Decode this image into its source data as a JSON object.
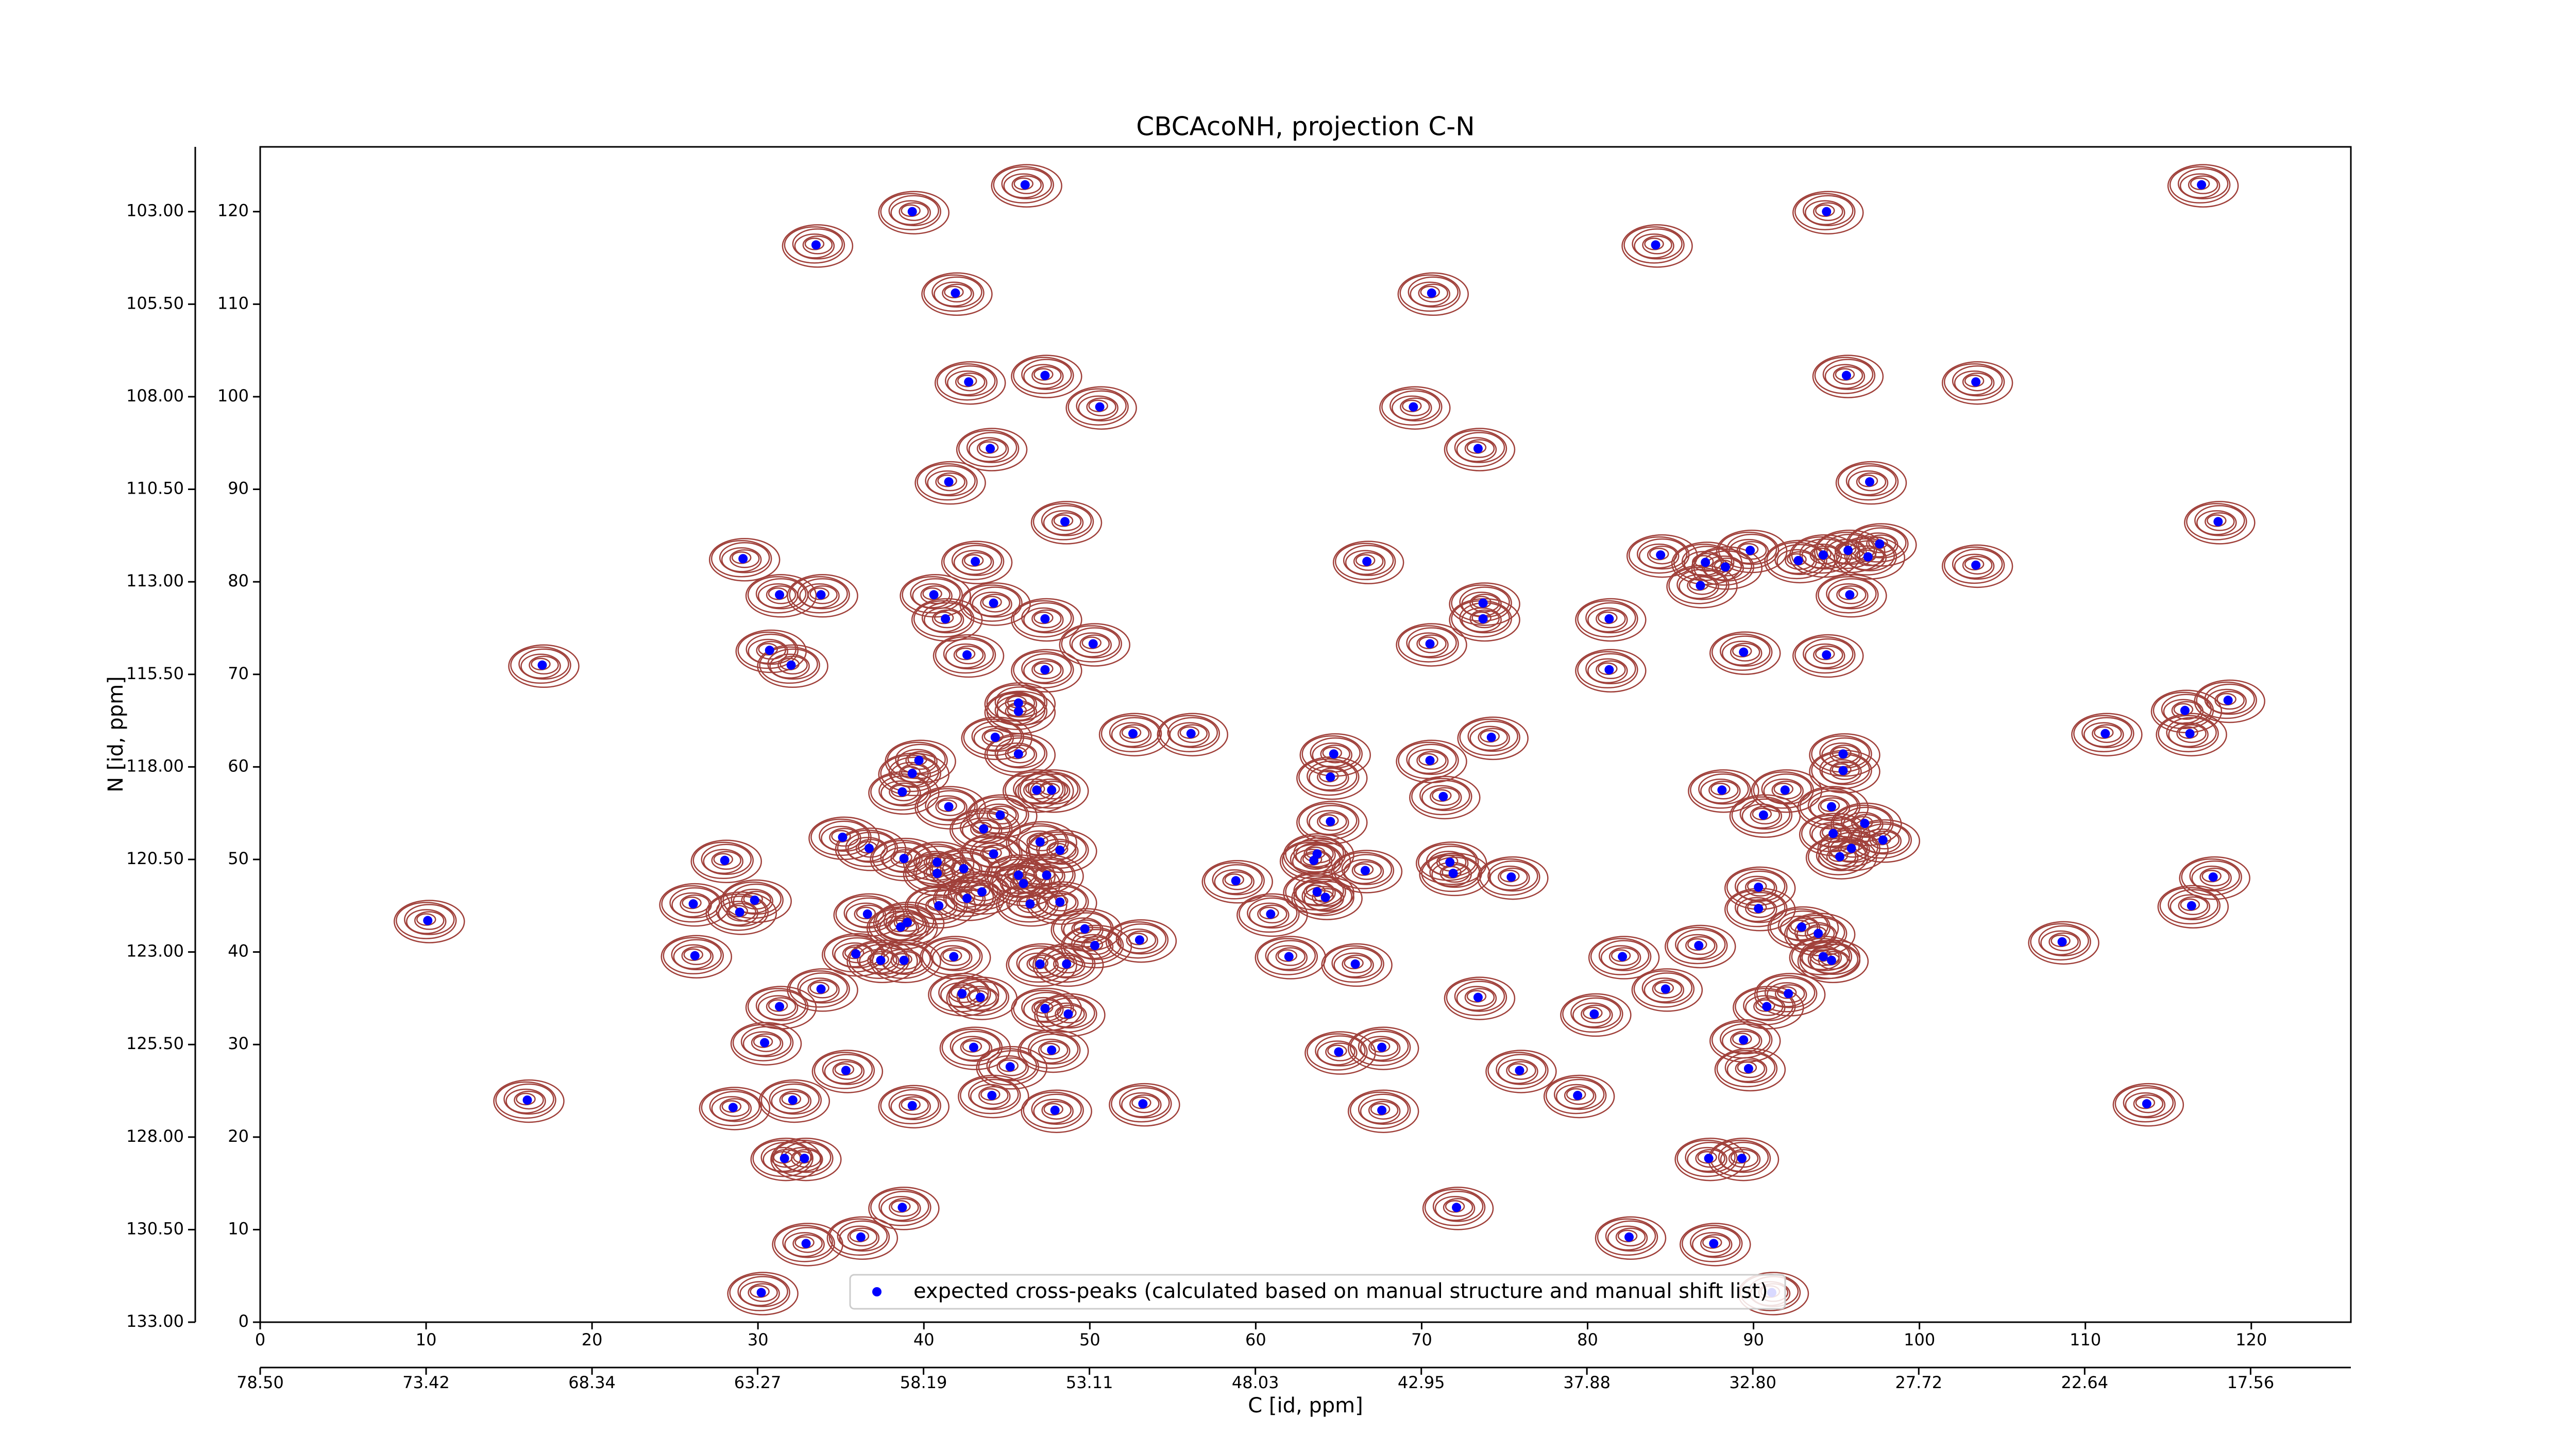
{
  "chart_data": {
    "type": "scatter",
    "title": "CBCAcoNH, projection C-N",
    "xlabel": "C [id, ppm]",
    "ylabel": "N [id, ppm]",
    "xlim": [
      0,
      126
    ],
    "ylim": [
      0,
      127
    ],
    "xticks": [
      0,
      10,
      20,
      30,
      40,
      50,
      60,
      70,
      80,
      90,
      100,
      110,
      120
    ],
    "yticks": [
      0,
      10,
      20,
      30,
      40,
      50,
      60,
      70,
      80,
      90,
      100,
      110,
      120
    ],
    "x2lim": [
      78.5,
      14.49
    ],
    "x2ticks": [
      {
        "value": 78.5,
        "label": "78.50"
      },
      73.42,
      68.34,
      63.27,
      58.19,
      53.11,
      48.03,
      42.95,
      37.88,
      {
        "value": 32.8,
        "label": "32.80"
      },
      27.72,
      22.64,
      17.56
    ],
    "y2lim": [
      133,
      101.25
    ],
    "y2ticks": [
      {
        "value": 103,
        "label": "103.00"
      },
      {
        "value": 105.5,
        "label": "105.50"
      },
      {
        "value": 108,
        "label": "108.00"
      },
      {
        "value": 110.5,
        "label": "110.50"
      },
      {
        "value": 113,
        "label": "113.00"
      },
      {
        "value": 115.5,
        "label": "115.50"
      },
      {
        "value": 118,
        "label": "118.00"
      },
      {
        "value": 120.5,
        "label": "120.50"
      },
      {
        "value": 123,
        "label": "123.00"
      },
      {
        "value": 125.5,
        "label": "125.50"
      },
      {
        "value": 128,
        "label": "128.00"
      },
      {
        "value": 130.5,
        "label": "130.50"
      },
      {
        "value": 133,
        "label": "133.00"
      }
    ],
    "contour_color": "#a0403a",
    "legend": "lower center",
    "series": [
      {
        "name": "expected cross-peaks (calculated based on manual structure and manual shift list)",
        "color": "#0000ff",
        "x": [
          46.1,
          39.3,
          117,
          94.4,
          33.5,
          84.1,
          41.9,
          70.6,
          42.7,
          47.3,
          50.6,
          69.5,
          95.6,
          103.4,
          44,
          73.4,
          41.5,
          97,
          48.5,
          118,
          29.1,
          31.3,
          33.8,
          40.6,
          41.3,
          44.2,
          43.1,
          66.7,
          73.7,
          73.7,
          47.3,
          81.3,
          84.4,
          86.8,
          87.1,
          88.3,
          89.8,
          92.7,
          94.2,
          95.7,
          95.8,
          96.9,
          97.6,
          103.4,
          50.2,
          70.5,
          30.7,
          32,
          42.6,
          47.3,
          17,
          89.4,
          94.4,
          81.3,
          45.7,
          45.7,
          52.6,
          56.1,
          74.2,
          111.2,
          116,
          118.6,
          116.3,
          44.3,
          45.7,
          39.7,
          39.3,
          64.7,
          64.5,
          70.5,
          95.4,
          95.4,
          38.7,
          41.5,
          46.8,
          47.7,
          71.3,
          88.1,
          91.9,
          90.6,
          94.7,
          44.6,
          43.6,
          35.1,
          36.7,
          38.8,
          40.8,
          40.8,
          42.4,
          47,
          48.2,
          44.2,
          45.7,
          47.4,
          46,
          43.5,
          46.4,
          48.2,
          28,
          64.5,
          63.7,
          63.5,
          66.6,
          71.7,
          71.9,
          75.4,
          94.8,
          95.9,
          95.2,
          97.8,
          96.7,
          117.7,
          116.4,
          58.8,
          60.9,
          63.7,
          64.2,
          90.3,
          90.3,
          26.1,
          28.9,
          29.8,
          36.6,
          38.6,
          39,
          40.9,
          42.6,
          10.1,
          49.7,
          50.3,
          53,
          92.9,
          93.9,
          94.2,
          94.7,
          108.6,
          26.2,
          35.9,
          37.4,
          38.8,
          41.8,
          47,
          48.6,
          62,
          66,
          82.1,
          86.7,
          33.8,
          31.3,
          42.3,
          43.4,
          84.7,
          73.4,
          92.1,
          90.8,
          47.3,
          48.7,
          80.4,
          30.4,
          43,
          47.7,
          65,
          67.6,
          89.4,
          89.7,
          45.2,
          35.3,
          75.9,
          44.1,
          16.1,
          28.5,
          32.1,
          39.3,
          47.9,
          53.2,
          67.6,
          79.4,
          113.7,
          31.6,
          32.8,
          87.3,
          89.3,
          38.7,
          72.1,
          32.9,
          36.2,
          82.5,
          87.6,
          30.2,
          91.1
        ],
        "values": [
          122.9,
          120,
          122.9,
          120,
          116.4,
          116.4,
          111.2,
          111.2,
          101.6,
          102.3,
          98.9,
          98.9,
          102.3,
          101.6,
          94.4,
          94.4,
          90.8,
          90.8,
          86.5,
          86.5,
          82.5,
          78.6,
          78.6,
          78.6,
          76,
          77.7,
          82.2,
          82.2,
          77.7,
          76,
          76,
          76,
          82.9,
          79.6,
          82.1,
          81.6,
          83.4,
          82.3,
          82.9,
          83.4,
          78.6,
          82.7,
          84.1,
          81.8,
          73.3,
          73.3,
          72.6,
          71,
          72.1,
          70.5,
          71,
          72.4,
          72.1,
          70.5,
          66.9,
          66,
          63.6,
          63.6,
          63.2,
          63.6,
          66.1,
          67.2,
          63.6,
          63.2,
          61.4,
          60.7,
          59.3,
          61.4,
          58.9,
          60.7,
          61.4,
          59.6,
          57.3,
          55.7,
          57.5,
          57.5,
          56.8,
          57.5,
          57.5,
          54.8,
          55.7,
          54.8,
          53.3,
          52.4,
          51.2,
          50.1,
          49.7,
          48.5,
          49,
          51.9,
          51,
          50.6,
          48.3,
          48.3,
          47.4,
          46.5,
          45.2,
          45.4,
          49.9,
          54.1,
          50.6,
          49.9,
          48.8,
          49.7,
          48.5,
          48.1,
          52.8,
          51.2,
          50.3,
          52.1,
          53.9,
          48.1,
          45,
          47.7,
          44.1,
          46.5,
          45.9,
          47,
          44.7,
          45.2,
          44.3,
          45.6,
          44.1,
          42.7,
          43.2,
          45,
          45.8,
          43.4,
          42.5,
          40.7,
          41.3,
          42.7,
          42,
          39.5,
          39.1,
          41.1,
          39.6,
          39.8,
          39.1,
          39.1,
          39.5,
          38.7,
          38.7,
          39.5,
          38.7,
          39.5,
          40.7,
          36,
          34.1,
          35.5,
          35.1,
          36,
          35.1,
          35.5,
          34.1,
          33.9,
          33.3,
          33.3,
          30.2,
          29.7,
          29.4,
          29.2,
          29.7,
          30.5,
          27.4,
          27.6,
          27.2,
          27.2,
          24.5,
          24,
          23.2,
          24,
          23.4,
          22.9,
          23.6,
          22.9,
          24.5,
          23.6,
          17.7,
          17.7,
          17.7,
          17.7,
          12.4,
          12.4,
          8.5,
          9.2,
          9.2,
          8.5,
          3.2,
          3.2
        ]
      }
    ]
  }
}
